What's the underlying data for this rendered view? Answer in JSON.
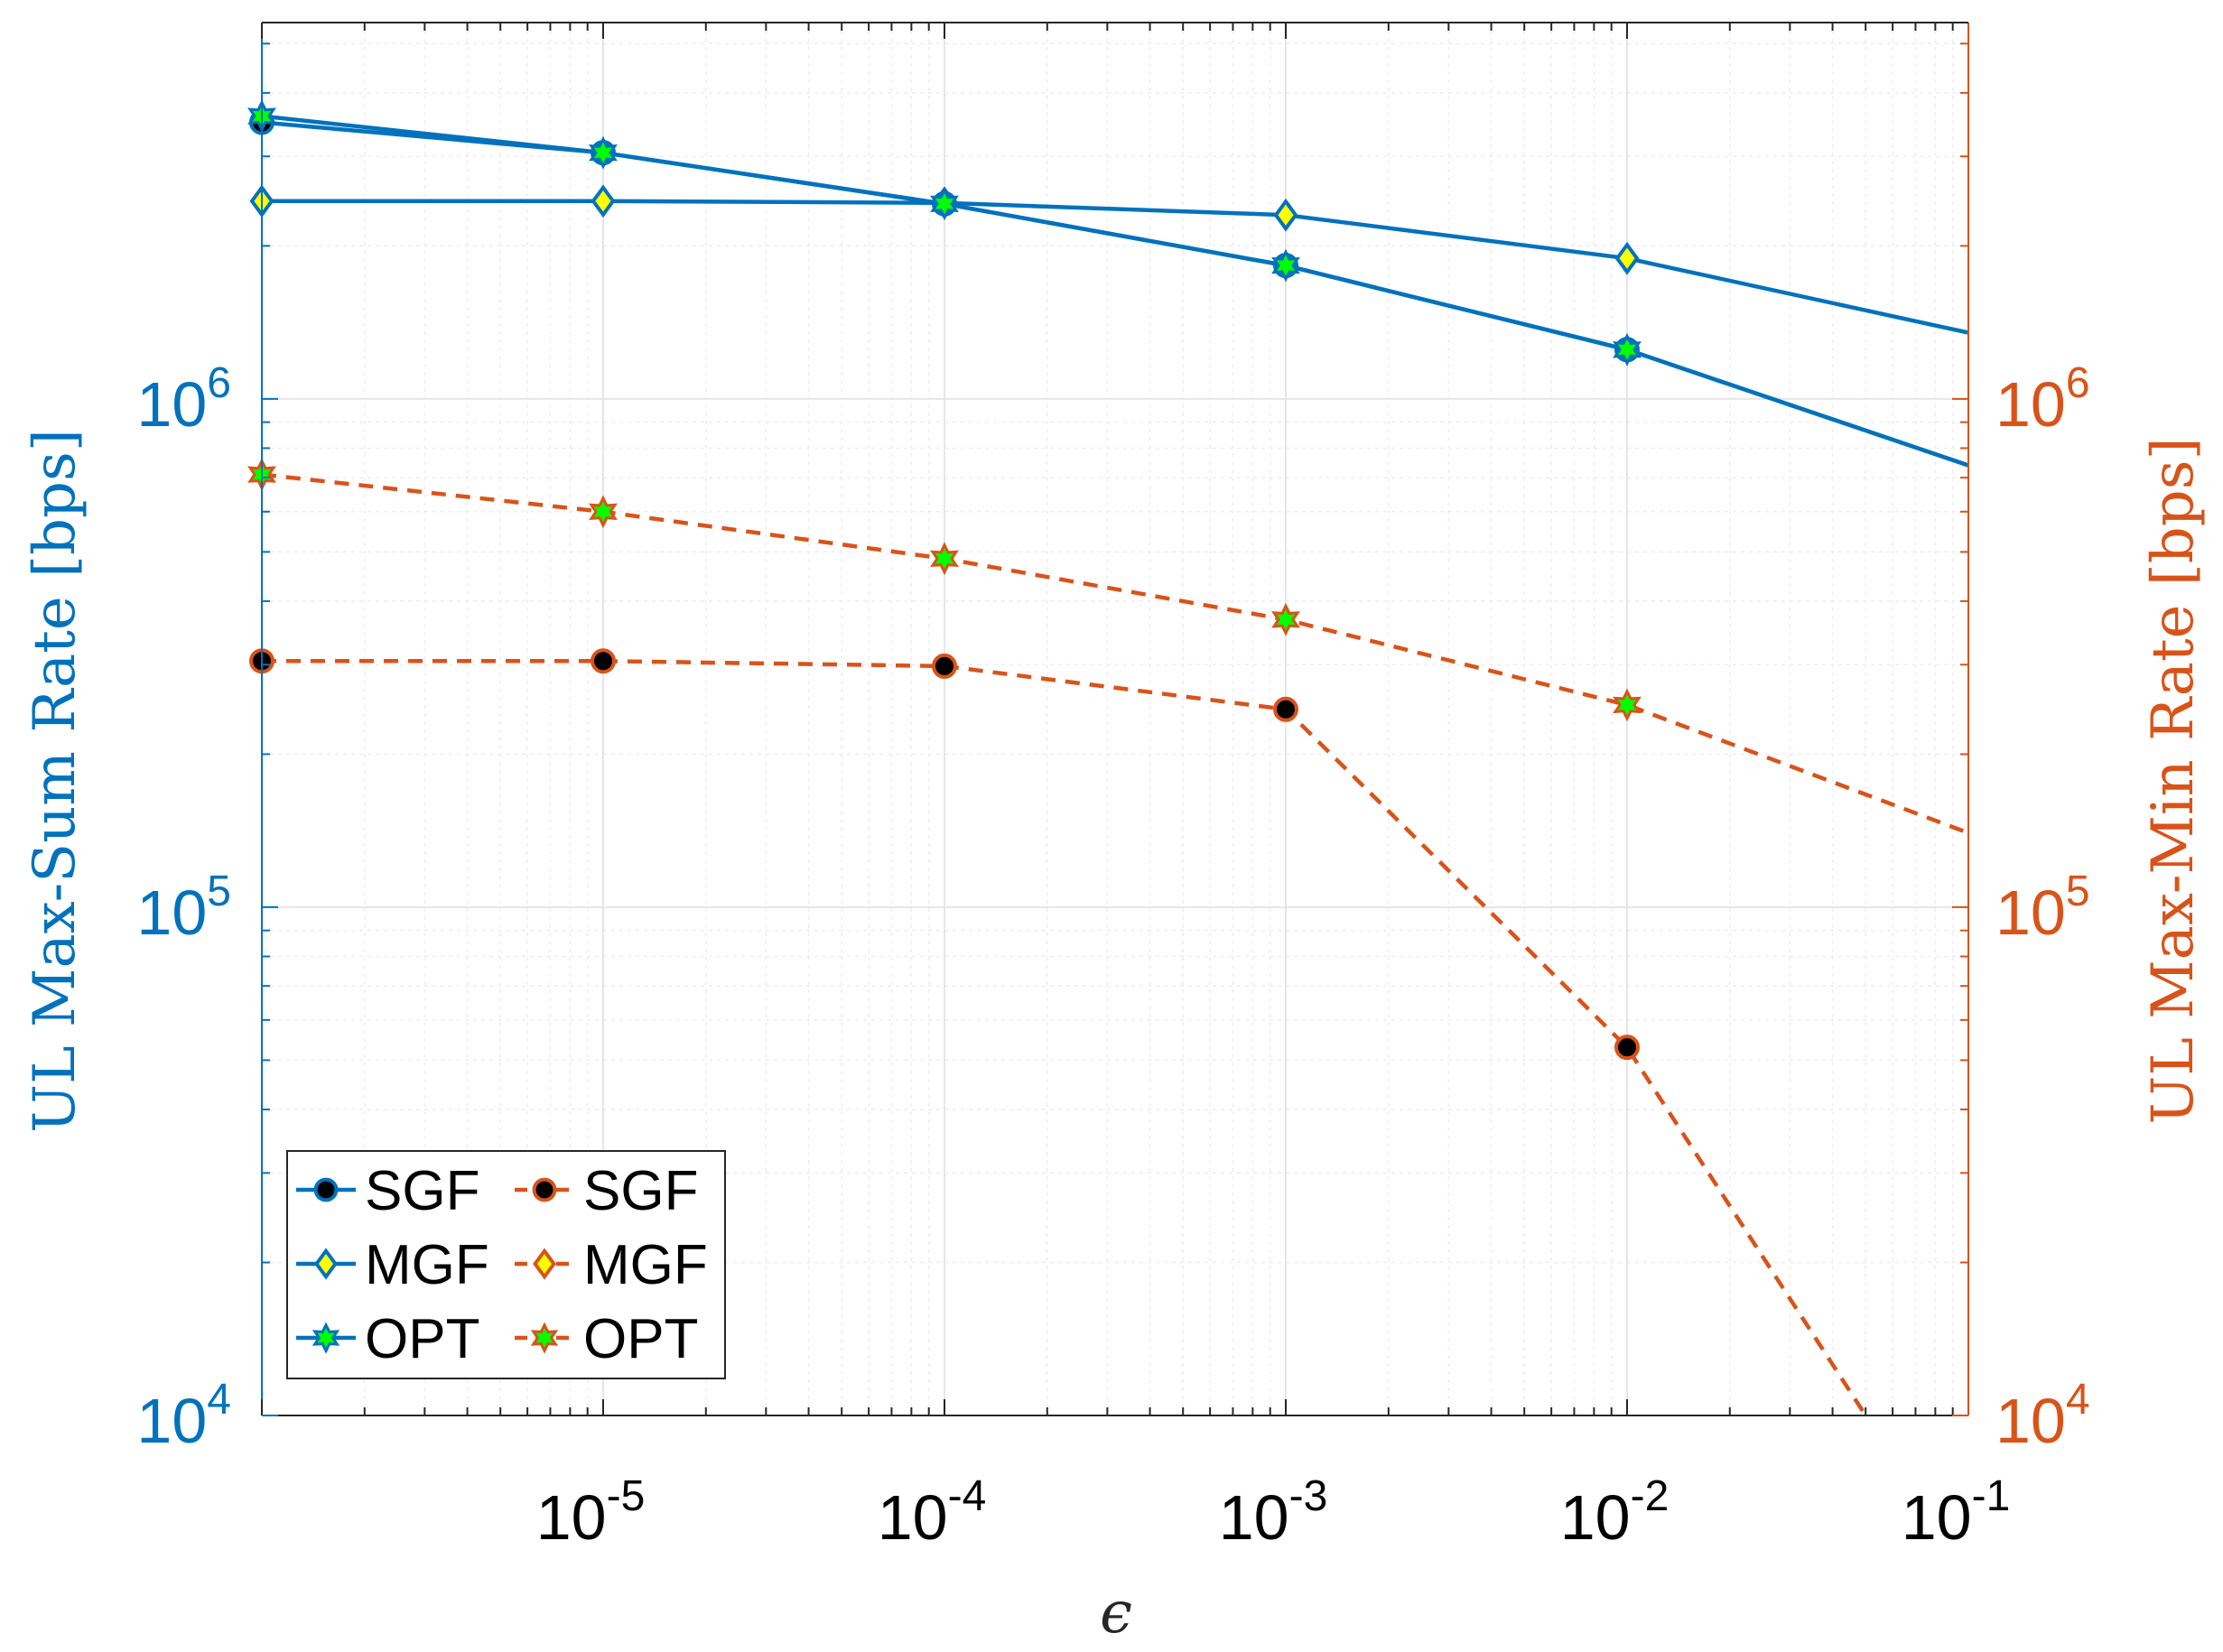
{
  "chart_data": {
    "type": "line",
    "title": "",
    "xlabel": "ϵ",
    "ylabel_left": "UL Max-Sum Rate [bps]",
    "ylabel_right": "UL Max-Min Rate [bps]",
    "xscale": "log",
    "yscale": "log",
    "xlim": [
      1e-06,
      0.1
    ],
    "ylim_left": [
      10000,
      5500000
    ],
    "ylim_right": [
      10000,
      5500000
    ],
    "grid": true,
    "legend_position": "bottom-left",
    "x_ticks": [
      {
        "mantissa": "10",
        "exponent": "-5"
      },
      {
        "mantissa": "10",
        "exponent": "-4"
      },
      {
        "mantissa": "10",
        "exponent": "-3"
      },
      {
        "mantissa": "10",
        "exponent": "-2"
      },
      {
        "mantissa": "10",
        "exponent": "-1"
      }
    ],
    "y_ticks_left": [
      {
        "mantissa": "10",
        "exponent": "4"
      },
      {
        "mantissa": "10",
        "exponent": "5"
      },
      {
        "mantissa": "10",
        "exponent": "6"
      }
    ],
    "y_ticks_right": [
      {
        "mantissa": "10",
        "exponent": "4"
      },
      {
        "mantissa": "10",
        "exponent": "5"
      },
      {
        "mantissa": "10",
        "exponent": "6"
      }
    ],
    "colors": {
      "left": "#0072BD",
      "right": "#D95319"
    },
    "legend": [
      {
        "label": "SGF",
        "axis": "left",
        "marker": "circle"
      },
      {
        "label": "SGF",
        "axis": "right",
        "marker": "circle"
      },
      {
        "label": "MGF",
        "axis": "left",
        "marker": "diamond"
      },
      {
        "label": "MGF",
        "axis": "right",
        "marker": "diamond"
      },
      {
        "label": "OPT",
        "axis": "left",
        "marker": "hexagram"
      },
      {
        "label": "OPT",
        "axis": "right",
        "marker": "hexagram"
      }
    ],
    "series": [
      {
        "name": "SGF",
        "axis": "left",
        "style": "solid",
        "marker": "circle",
        "markerFill": "#000000",
        "x": [
          1e-06,
          1e-05,
          0.0001,
          0.001,
          0.01,
          0.1
        ],
        "y": [
          3500000,
          3050000,
          2420000,
          1830000,
          1250000,
          740000
        ]
      },
      {
        "name": "MGF",
        "axis": "left",
        "style": "solid",
        "marker": "diamond",
        "markerFill": "#FFFF00",
        "x": [
          1e-06,
          1e-05,
          0.0001,
          0.001,
          0.01,
          0.1
        ],
        "y": [
          2450000,
          2450000,
          2430000,
          2300000,
          1890000,
          1350000
        ]
      },
      {
        "name": "OPT",
        "axis": "left",
        "style": "solid",
        "marker": "hexagram",
        "markerFill": "#00FF00",
        "x": [
          1e-06,
          1e-05,
          0.0001,
          0.001,
          0.01,
          0.1
        ],
        "y": [
          3600000,
          3050000,
          2420000,
          1830000,
          1250000,
          740000
        ]
      },
      {
        "name": "SGF",
        "axis": "right",
        "style": "dashed",
        "marker": "circle",
        "markerFill": "#000000",
        "x": [
          1e-06,
          1e-05,
          0.0001,
          0.001,
          0.01,
          0.05
        ],
        "y": [
          305000,
          305000,
          298000,
          245000,
          53000,
          10000
        ]
      },
      {
        "name": "OPT",
        "axis": "right",
        "style": "dashed",
        "marker": "hexagram",
        "markerFill": "#00FF00",
        "x": [
          1e-06,
          1e-05,
          0.0001,
          0.001,
          0.01,
          0.1
        ],
        "y": [
          710000,
          600000,
          485000,
          368000,
          250000,
          140000
        ]
      }
    ]
  }
}
